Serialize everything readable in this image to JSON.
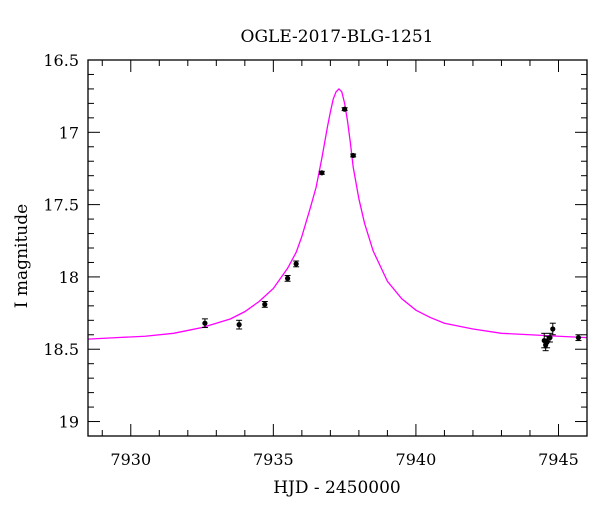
{
  "chart_data": {
    "type": "scatter",
    "title": "OGLE-2017-BLG-1251",
    "xlabel": "HJD - 2450000",
    "ylabel": "I magnitude",
    "xlim": [
      7928.5,
      7946.0
    ],
    "ylim": [
      16.5,
      19.1
    ],
    "y_inverted": true,
    "x_ticks": [
      7930,
      7935,
      7940,
      7945
    ],
    "x_tick_labels": [
      "7930",
      "7935",
      "7940",
      "7945"
    ],
    "y_ticks": [
      16.5,
      17,
      17.5,
      18,
      18.5,
      19
    ],
    "y_tick_labels": [
      "16.5",
      "17",
      "17.5",
      "18",
      "18.5",
      "19"
    ],
    "grid": false,
    "colors": {
      "model": "#ff00ff",
      "points": "#000000",
      "axes": "#000000"
    },
    "series": [
      {
        "kind": "points",
        "x": [
          7932.6,
          7933.8,
          7934.7,
          7935.5,
          7935.8,
          7936.7,
          7937.5,
          7937.8,
          7944.5,
          7944.55,
          7944.6,
          7944.7,
          7944.8,
          7945.7
        ],
        "y": [
          18.32,
          18.33,
          18.19,
          18.01,
          17.91,
          17.28,
          16.84,
          17.16,
          18.44,
          18.47,
          18.45,
          18.42,
          18.36,
          18.42
        ],
        "err": [
          0.03,
          0.03,
          0.02,
          0.02,
          0.02,
          0.01,
          0.01,
          0.01,
          0.05,
          0.04,
          0.04,
          0.03,
          0.04,
          0.02
        ]
      },
      {
        "kind": "model",
        "x": [
          7928.5,
          7929.5,
          7930.5,
          7931.5,
          7932.0,
          7932.5,
          7933.0,
          7933.5,
          7934.0,
          7934.5,
          7935.0,
          7935.5,
          7935.8,
          7936.0,
          7936.3,
          7936.5,
          7936.7,
          7936.9,
          7937.0,
          7937.1,
          7937.2,
          7937.3,
          7937.4,
          7937.5,
          7937.6,
          7937.7,
          7937.8,
          7938.0,
          7938.2,
          7938.5,
          7939.0,
          7939.5,
          7940.0,
          7940.5,
          7941.0,
          7942.0,
          7943.0,
          7944.0,
          7945.0,
          7946.0
        ],
        "y": [
          18.43,
          18.42,
          18.41,
          18.39,
          18.37,
          18.35,
          18.32,
          18.29,
          18.24,
          18.17,
          18.08,
          17.94,
          17.83,
          17.72,
          17.52,
          17.38,
          17.18,
          16.96,
          16.86,
          16.77,
          16.72,
          16.7,
          16.72,
          16.8,
          16.92,
          17.07,
          17.24,
          17.46,
          17.63,
          17.82,
          18.03,
          18.15,
          18.23,
          18.28,
          18.32,
          18.36,
          18.39,
          18.4,
          18.41,
          18.42
        ]
      }
    ]
  }
}
